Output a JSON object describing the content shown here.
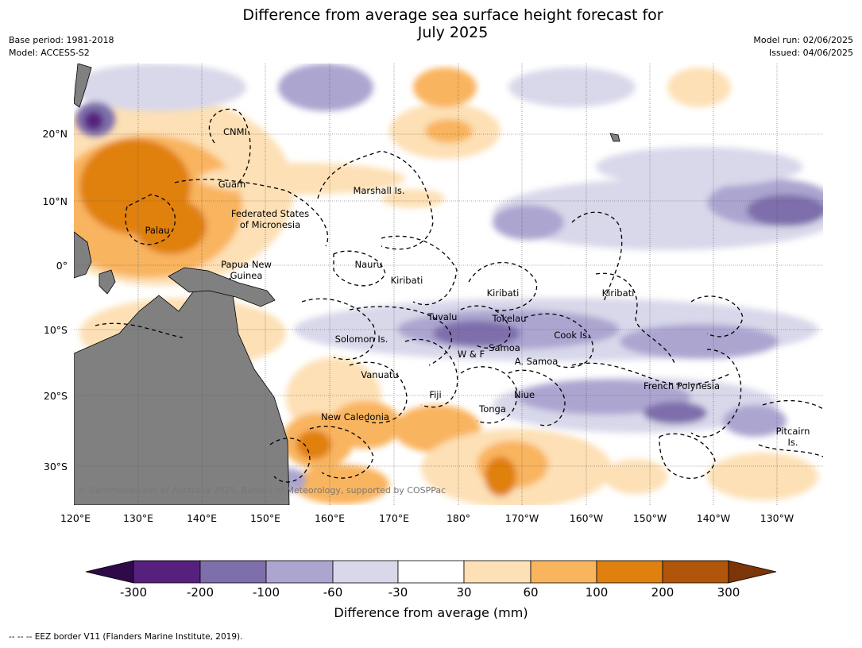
{
  "header": {
    "title_line1": "Difference from average sea surface height forecast for",
    "title_line2": "July 2025",
    "base_period": "Base period: 1981-2018",
    "model": "Model: ACCESS-S2",
    "model_run": "Model run: 02/06/2025",
    "issued": "Issued: 04/06/2025"
  },
  "map": {
    "lat_labels": [
      "20°N",
      "10°N",
      "0°",
      "10°S",
      "20°S",
      "30°S"
    ],
    "lon_labels": [
      "120°E",
      "130°E",
      "140°E",
      "150°E",
      "160°E",
      "170°E",
      "180°",
      "170°W",
      "160°W",
      "150°W",
      "140°W",
      "130°W"
    ],
    "regions": [
      "CNMI",
      "Guam",
      "Marshall Is.",
      "Federated States",
      "of Micronesia",
      "Palau",
      "Nauru",
      "Papua New",
      "Guinea",
      "Kiribati",
      "Kiribati",
      "Kiribati",
      "Tuvalu",
      "Tokelau",
      "Solomon Is.",
      "Cook Is.",
      "W & F",
      "Samoa",
      "A. Samoa",
      "Vanuatu",
      "Fiji",
      "Niue",
      "French Polynesia",
      "Tonga",
      "New Caledonia",
      "Pitcairn",
      "Is."
    ],
    "copyright": "© Commonwealth of Australia 2025, Bureau of Meteorology, supported by COSPPac"
  },
  "colorbar": {
    "ticks": [
      "-300",
      "-200",
      "-100",
      "-60",
      "-30",
      "30",
      "60",
      "100",
      "200",
      "300"
    ],
    "colors": [
      "#2e0a4a",
      "#57207f",
      "#7e6eab",
      "#aca5d0",
      "#d8d8ea",
      "#ffffff",
      "#fde0b5",
      "#f9b45e",
      "#e0800f",
      "#b0550a",
      "#7c3506"
    ],
    "label": "Difference from average (mm)"
  },
  "footnote": "--  --  -- EEZ border V11 (Flanders Marine Institute, 2019)."
}
